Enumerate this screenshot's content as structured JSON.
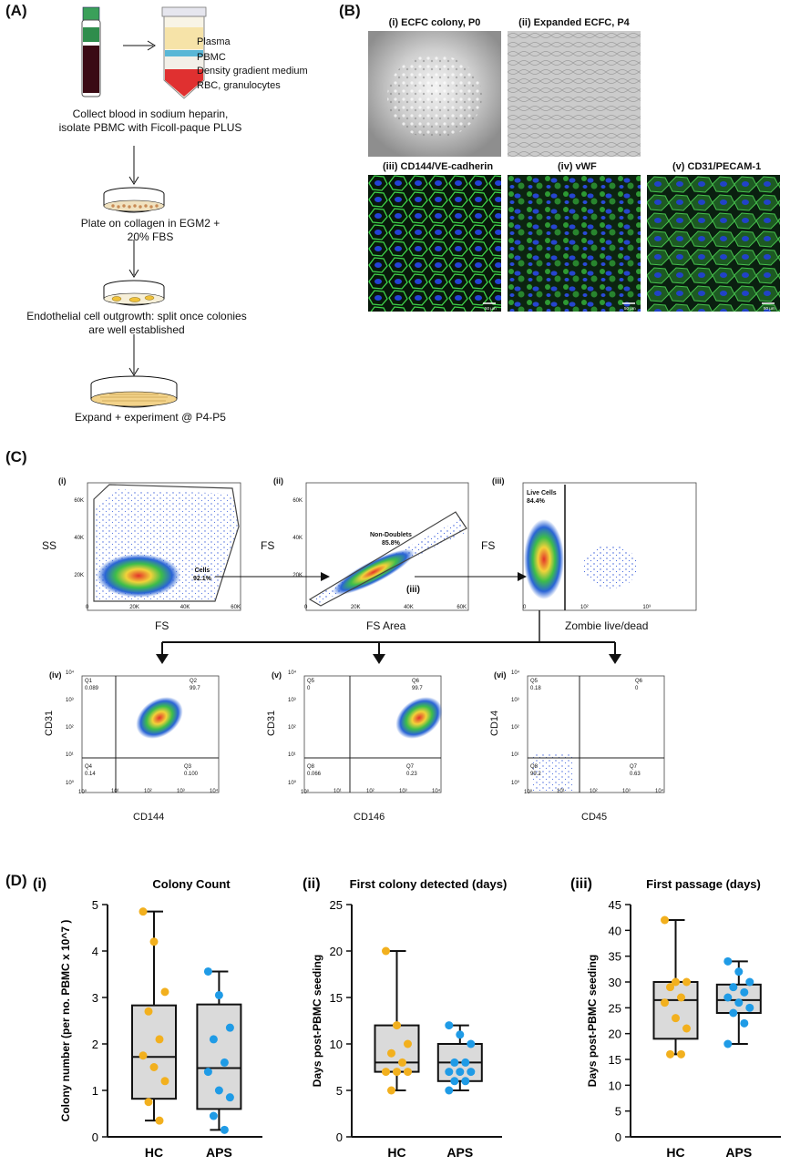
{
  "panels": {
    "A": "(A)",
    "B": "(B)",
    "C": "(C)",
    "D": "(D)"
  },
  "panel_a": {
    "tube_labels": [
      "Plasma",
      "PBMC",
      "Density gradient medium",
      "RBC, granulocytes"
    ],
    "step1": [
      "Collect blood in sodium heparin,",
      "isolate PBMC with Ficoll-paque PLUS"
    ],
    "step2": [
      "Plate on collagen in EGM2 +",
      "20% FBS"
    ],
    "step3": [
      "Endothelial cell outgrowth: split once colonies",
      "are well established"
    ],
    "step4": [
      "Expand + experiment @ P4-P5"
    ]
  },
  "panel_b": {
    "images": [
      {
        "title": "(i) ECFC colony, P0"
      },
      {
        "title": "(ii) Expanded ECFC, P4"
      },
      {
        "title": "(iii) CD144/VE-cadherin"
      },
      {
        "title": "(iv) vWF"
      },
      {
        "title": "(v) CD31/PECAM-1"
      }
    ],
    "scale_label": "50 µm"
  },
  "panel_c": {
    "top_plots": [
      {
        "roman": "(i)",
        "xlabel": "FS",
        "ylabel": "SS",
        "gate_name": "Cells",
        "gate_value": "92.1%",
        "yticks": [
          "60K",
          "40K",
          "20K",
          "0"
        ],
        "xticks": [
          "0",
          "20K",
          "40K",
          "60K"
        ]
      },
      {
        "roman": "(ii)",
        "xlabel": "FS Area",
        "ylabel": "FS",
        "gate_name": "Non-Doublets",
        "gate_value": "85.8%",
        "sub": "(iii)",
        "yticks": [
          "60K",
          "40K",
          "20K",
          "0"
        ],
        "xticks": [
          "0",
          "20K",
          "40K",
          "60K"
        ]
      },
      {
        "roman": "(iii)",
        "xlabel": "Zombie live/dead",
        "ylabel": "FS",
        "gate_name": "Live Cells",
        "gate_value": "84.4%",
        "xticks": [
          "0",
          "10²",
          "10³"
        ]
      }
    ],
    "quad_plots": [
      {
        "roman": "(iv)",
        "xlabel": "CD144",
        "ylabel": "CD31",
        "q": [
          [
            "Q1",
            "0.089"
          ],
          [
            "Q2",
            "99.7"
          ],
          [
            "Q4",
            "0.14"
          ],
          [
            "Q3",
            "0.100"
          ]
        ]
      },
      {
        "roman": "(v)",
        "xlabel": "CD146",
        "ylabel": "CD31",
        "q": [
          [
            "Q5",
            "0"
          ],
          [
            "Q6",
            "99.7"
          ],
          [
            "Q8",
            "0.066"
          ],
          [
            "Q7",
            "0.23"
          ]
        ]
      },
      {
        "roman": "(vi)",
        "xlabel": "CD45",
        "ylabel": "CD14",
        "q": [
          [
            "Q5",
            "0.18"
          ],
          [
            "Q6",
            "0"
          ],
          [
            "Q8",
            "99.2"
          ],
          [
            "Q7",
            "0.63"
          ]
        ]
      }
    ],
    "log_ticks": [
      "10⁴",
      "10³",
      "10²",
      "10¹",
      "10⁰"
    ]
  },
  "chart_data": [
    {
      "type": "box",
      "roman": "(i)",
      "title": "Colony Count",
      "ylabel": "Colony number (per no. PBMC x 10^7 )",
      "ylim": [
        0,
        5
      ],
      "yticks": [
        "0",
        "1",
        "2",
        "3",
        "4",
        "5"
      ],
      "categories": [
        "HC",
        "APS"
      ],
      "colors": [
        "#f2b01e",
        "#1f9be6"
      ],
      "boxes": [
        {
          "min": 0.35,
          "q1": 0.82,
          "median": 1.72,
          "q3": 2.83,
          "max": 4.85
        },
        {
          "min": 0.15,
          "q1": 0.6,
          "median": 1.48,
          "q3": 2.85,
          "max": 3.56
        }
      ],
      "points": [
        [
          4.85,
          4.2,
          3.12,
          2.7,
          2.1,
          1.75,
          1.5,
          1.2,
          0.75,
          0.35
        ],
        [
          3.56,
          3.05,
          2.35,
          2.1,
          1.6,
          1.4,
          1.0,
          0.85,
          0.45,
          0.15
        ]
      ]
    },
    {
      "type": "box",
      "roman": "(ii)",
      "title": "First colony detected (days)",
      "ylabel": "Days post-PBMC seeding",
      "ylim": [
        0,
        25
      ],
      "yticks": [
        "0",
        "5",
        "10",
        "15",
        "20",
        "25"
      ],
      "categories": [
        "HC",
        "APS"
      ],
      "colors": [
        "#f2b01e",
        "#1f9be6"
      ],
      "boxes": [
        {
          "min": 5,
          "q1": 7,
          "median": 8,
          "q3": 12,
          "max": 20
        },
        {
          "min": 5,
          "q1": 6,
          "median": 8,
          "q3": 10,
          "max": 12
        }
      ],
      "points": [
        [
          20,
          12,
          10,
          9,
          8,
          7,
          7,
          7,
          5
        ],
        [
          12,
          11,
          10,
          8,
          8,
          7,
          7,
          7,
          6,
          6,
          5
        ]
      ]
    },
    {
      "type": "box",
      "roman": "(iii)",
      "title": "First passage (days)",
      "ylabel": "Days post-PBMC seeding",
      "ylim": [
        0,
        45
      ],
      "yticks": [
        "0",
        "5",
        "10",
        "15",
        "20",
        "25",
        "30",
        "35",
        "40",
        "45"
      ],
      "categories": [
        "HC",
        "APS"
      ],
      "colors": [
        "#f2b01e",
        "#1f9be6"
      ],
      "boxes": [
        {
          "min": 16,
          "q1": 19,
          "median": 26.5,
          "q3": 30,
          "max": 42
        },
        {
          "min": 18,
          "q1": 24,
          "median": 26.5,
          "q3": 29.5,
          "max": 34
        }
      ],
      "points": [
        [
          42,
          30,
          30,
          29,
          27,
          26,
          23,
          21,
          16,
          16
        ],
        [
          34,
          32,
          30,
          29,
          28,
          27,
          26,
          25,
          24,
          22,
          18
        ]
      ]
    }
  ]
}
